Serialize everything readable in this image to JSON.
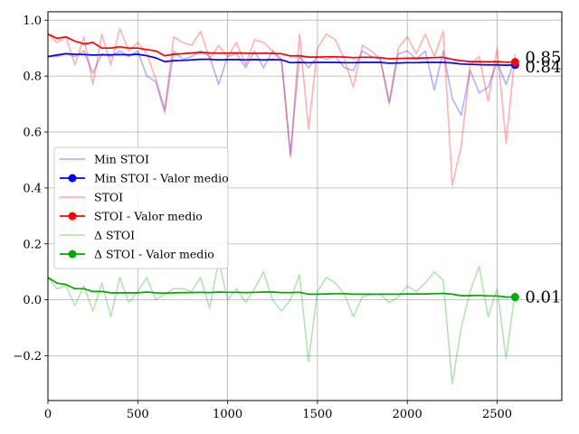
{
  "chart_data": {
    "type": "line",
    "title": "",
    "xlabel": "",
    "ylabel": "",
    "xlim": [
      0,
      2860
    ],
    "ylim": [
      -0.36,
      1.03
    ],
    "x_ticks": [
      0,
      500,
      1000,
      1500,
      2000,
      2500
    ],
    "y_ticks": [
      -0.2,
      0.0,
      0.2,
      0.4,
      0.6,
      0.8,
      1.0
    ],
    "x_tick_labels": [
      "0",
      "500",
      "1000",
      "1500",
      "2000",
      "2500"
    ],
    "y_tick_labels": [
      "−0.2",
      "0.0",
      "0.2",
      "0.4",
      "0.6",
      "0.8",
      "1.0"
    ],
    "grid": true,
    "legend_position": "center-left",
    "x": [
      0,
      50,
      100,
      150,
      200,
      250,
      300,
      350,
      400,
      450,
      500,
      550,
      600,
      650,
      700,
      750,
      800,
      850,
      900,
      950,
      1000,
      1050,
      1100,
      1150,
      1200,
      1250,
      1300,
      1350,
      1400,
      1450,
      1500,
      1550,
      1600,
      1650,
      1700,
      1750,
      1800,
      1850,
      1900,
      1950,
      2000,
      2050,
      2100,
      2150,
      2200,
      2250,
      2300,
      2350,
      2400,
      2450,
      2500,
      2550,
      2600
    ],
    "series": [
      {
        "name": "Min STOI",
        "color": "#0000ff",
        "style": "raw",
        "values": [
          0.87,
          0.87,
          0.88,
          0.87,
          0.89,
          0.81,
          0.88,
          0.87,
          0.89,
          0.87,
          0.89,
          0.8,
          0.78,
          0.67,
          0.89,
          0.86,
          0.87,
          0.89,
          0.87,
          0.77,
          0.87,
          0.88,
          0.83,
          0.89,
          0.83,
          0.89,
          0.86,
          0.52,
          0.87,
          0.83,
          0.87,
          0.86,
          0.87,
          0.83,
          0.82,
          0.89,
          0.87,
          0.86,
          0.7,
          0.88,
          0.89,
          0.86,
          0.89,
          0.75,
          0.89,
          0.72,
          0.66,
          0.82,
          0.74,
          0.76,
          0.85,
          0.77,
          0.86
        ]
      },
      {
        "name": "Min STOI - Valor medio",
        "color": "#0000ff",
        "style": "smoothed",
        "end_label": "0.84",
        "values": [
          0.87,
          0.875,
          0.88,
          0.878,
          0.877,
          0.875,
          0.876,
          0.876,
          0.877,
          0.876,
          0.878,
          0.873,
          0.865,
          0.852,
          0.855,
          0.856,
          0.858,
          0.86,
          0.86,
          0.858,
          0.859,
          0.859,
          0.858,
          0.859,
          0.858,
          0.859,
          0.858,
          0.848,
          0.849,
          0.848,
          0.849,
          0.849,
          0.849,
          0.848,
          0.848,
          0.849,
          0.849,
          0.849,
          0.846,
          0.847,
          0.848,
          0.848,
          0.849,
          0.849,
          0.849,
          0.847,
          0.843,
          0.842,
          0.841,
          0.84,
          0.84,
          0.839,
          0.84
        ]
      },
      {
        "name": "STOI",
        "color": "#ff0000",
        "style": "raw",
        "values": [
          0.95,
          0.92,
          0.94,
          0.84,
          0.94,
          0.77,
          0.95,
          0.84,
          0.97,
          0.89,
          0.92,
          0.88,
          0.79,
          0.68,
          0.94,
          0.92,
          0.91,
          0.96,
          0.86,
          0.91,
          0.87,
          0.92,
          0.84,
          0.93,
          0.92,
          0.89,
          0.85,
          0.51,
          0.95,
          0.61,
          0.9,
          0.95,
          0.93,
          0.86,
          0.76,
          0.91,
          0.89,
          0.86,
          0.71,
          0.9,
          0.94,
          0.88,
          0.95,
          0.87,
          0.96,
          0.41,
          0.55,
          0.84,
          0.87,
          0.71,
          0.9,
          0.56,
          0.88
        ]
      },
      {
        "name": "STOI - Valor medio",
        "color": "#ff0000",
        "style": "smoothed",
        "end_label": "0.85",
        "values": [
          0.95,
          0.935,
          0.94,
          0.925,
          0.915,
          0.92,
          0.9,
          0.9,
          0.905,
          0.9,
          0.9,
          0.895,
          0.89,
          0.873,
          0.878,
          0.88,
          0.883,
          0.885,
          0.883,
          0.882,
          0.882,
          0.883,
          0.882,
          0.881,
          0.882,
          0.881,
          0.88,
          0.872,
          0.873,
          0.868,
          0.868,
          0.869,
          0.869,
          0.868,
          0.866,
          0.867,
          0.867,
          0.866,
          0.862,
          0.863,
          0.864,
          0.864,
          0.865,
          0.866,
          0.867,
          0.86,
          0.855,
          0.852,
          0.852,
          0.851,
          0.852,
          0.85,
          0.85
        ]
      },
      {
        "name": "Δ STOI",
        "color": "#00aa00",
        "style": "raw",
        "values": [
          0.08,
          0.04,
          0.05,
          -0.02,
          0.05,
          -0.04,
          0.06,
          -0.06,
          0.08,
          -0.01,
          0.03,
          0.08,
          0.0,
          0.02,
          0.04,
          0.04,
          0.03,
          0.08,
          -0.03,
          0.14,
          0.0,
          0.04,
          -0.01,
          0.04,
          0.1,
          0.0,
          -0.04,
          0.0,
          0.09,
          -0.22,
          0.03,
          0.08,
          0.06,
          0.02,
          -0.06,
          0.01,
          0.02,
          0.02,
          -0.01,
          0.01,
          0.05,
          0.03,
          0.06,
          0.1,
          0.07,
          -0.3,
          -0.1,
          0.03,
          0.12,
          -0.06,
          0.04,
          -0.21,
          0.03
        ]
      },
      {
        "name": "Δ STOI - Valor medio",
        "color": "#00aa00",
        "style": "smoothed",
        "end_label": "0.01",
        "values": [
          0.08,
          0.06,
          0.055,
          0.04,
          0.04,
          0.03,
          0.03,
          0.025,
          0.025,
          0.025,
          0.025,
          0.028,
          0.025,
          0.024,
          0.025,
          0.026,
          0.026,
          0.027,
          0.026,
          0.028,
          0.027,
          0.027,
          0.026,
          0.027,
          0.028,
          0.028,
          0.026,
          0.026,
          0.027,
          0.02,
          0.02,
          0.021,
          0.022,
          0.022,
          0.02,
          0.02,
          0.02,
          0.02,
          0.02,
          0.02,
          0.021,
          0.021,
          0.021,
          0.022,
          0.023,
          0.02,
          0.015,
          0.015,
          0.016,
          0.014,
          0.014,
          0.01,
          0.01
        ]
      }
    ]
  }
}
